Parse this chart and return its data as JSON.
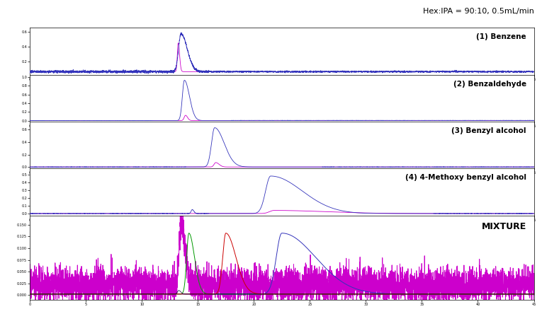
{
  "title_text": "Hex:IPA = 90:10, 0.5mL/min",
  "background_color": "#ffffff",
  "panel_labels": [
    "(1) Benzene",
    "(2) Benzaldehyde",
    "(3) Benzyl alcohol",
    "(4) 4-Methoxy benzyl alcohol",
    "MIXTURE"
  ],
  "x_range": [
    0,
    45
  ],
  "colors": {
    "blue": "#3333bb",
    "pink": "#cc00cc",
    "green": "#009900",
    "red": "#cc0000",
    "dark": "#000033"
  },
  "panel_heights": [
    1,
    1,
    1,
    1,
    1.8
  ]
}
